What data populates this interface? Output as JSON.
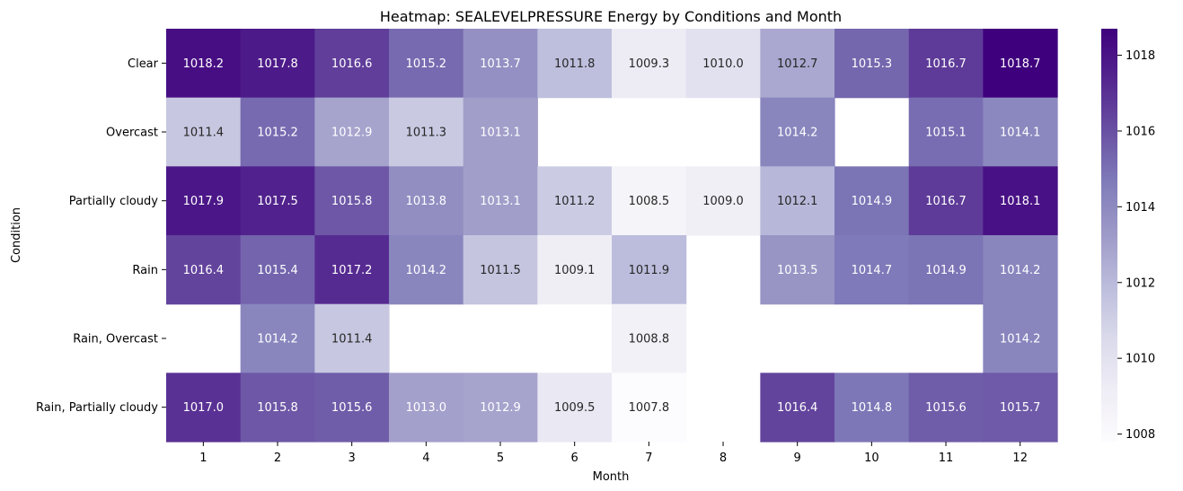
{
  "chart_data": {
    "type": "heatmap",
    "title": "Heatmap: SEALEVELPRESSURE Energy by Conditions and Month",
    "xlabel": "Month",
    "ylabel": "Condition",
    "x": [
      "1",
      "2",
      "3",
      "4",
      "5",
      "6",
      "7",
      "8",
      "9",
      "10",
      "11",
      "12"
    ],
    "y": [
      "Clear",
      "Overcast",
      "Partially cloudy",
      "Rain",
      "Rain, Overcast",
      "Rain, Partially cloudy"
    ],
    "values": [
      [
        1018.2,
        1017.8,
        1016.6,
        1015.2,
        1013.7,
        1011.8,
        1009.3,
        1010.0,
        1012.7,
        1015.3,
        1016.7,
        1018.7
      ],
      [
        1011.4,
        1015.2,
        1012.9,
        1011.3,
        1013.1,
        null,
        null,
        null,
        1014.2,
        null,
        1015.1,
        1014.1
      ],
      [
        1017.9,
        1017.5,
        1015.8,
        1013.8,
        1013.1,
        1011.2,
        1008.5,
        1009.0,
        1012.1,
        1014.9,
        1016.7,
        1018.1
      ],
      [
        1016.4,
        1015.4,
        1017.2,
        1014.2,
        1011.5,
        1009.1,
        1011.9,
        null,
        1013.5,
        1014.7,
        1014.9,
        1014.2
      ],
      [
        null,
        1014.2,
        1011.4,
        null,
        null,
        null,
        1008.8,
        null,
        null,
        null,
        null,
        1014.2
      ],
      [
        1017.0,
        1015.8,
        1015.6,
        1013.0,
        1012.9,
        1009.5,
        1007.8,
        null,
        1016.4,
        1014.8,
        1015.6,
        1015.7
      ]
    ],
    "color_range": [
      1007.8,
      1018.7
    ],
    "colormap": "Purples",
    "colorbar_ticks": [
      "1008",
      "1010",
      "1012",
      "1014",
      "1016",
      "1018"
    ],
    "colorbar_tick_values": [
      1008,
      1010,
      1012,
      1014,
      1016,
      1018
    ],
    "grid": false,
    "colorbar_position": "right"
  }
}
